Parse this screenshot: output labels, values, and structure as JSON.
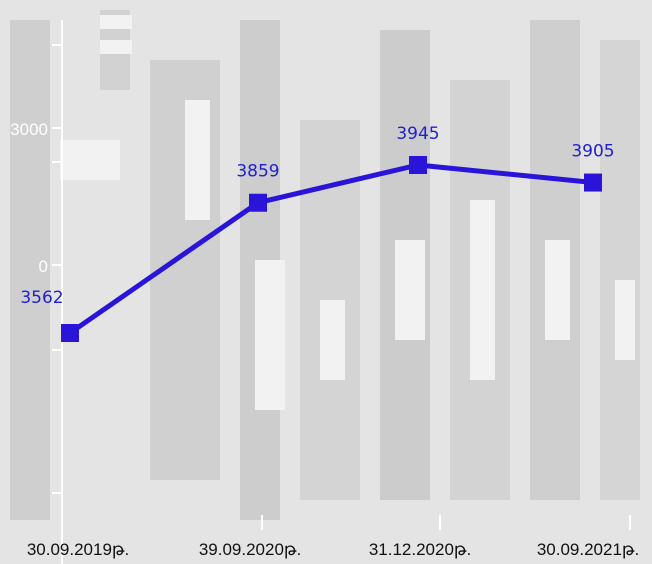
{
  "chart_data": {
    "type": "line",
    "categories": [
      "30.09.2019թ.",
      "39.09.2020թ.",
      "31.12.2020թ.",
      "30.09.2021թ."
    ],
    "values": [
      3562,
      3859,
      3945,
      3905
    ],
    "data_labels": [
      "3562",
      "3859",
      "3945",
      "3905"
    ],
    "y_tick_labels": [
      "3000",
      "0"
    ],
    "title": "",
    "xlabel": "",
    "ylabel": "",
    "ylim": [
      3080,
      4090
    ],
    "grid": false,
    "legend": "none",
    "marker": "square"
  },
  "colors": {
    "series": "#2a14d8",
    "data_label": "#1f1fd0",
    "background": "#ffffff",
    "texture": "#d9d9d9"
  }
}
